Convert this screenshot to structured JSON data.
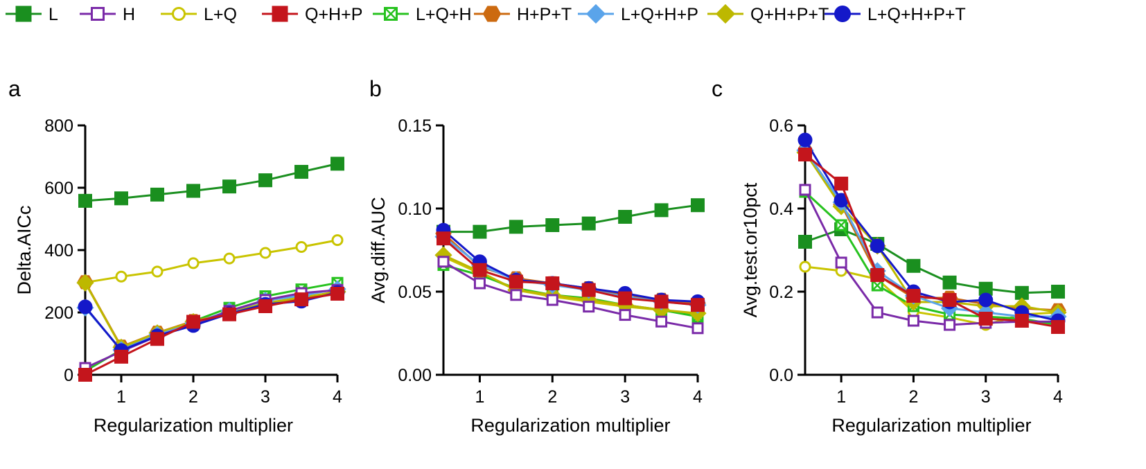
{
  "legend": {
    "entries": [
      {
        "key": "L",
        "label": "L",
        "color": "#1a8f1f",
        "marker": "square-filled"
      },
      {
        "key": "H",
        "label": "H",
        "color": "#7a2aa8",
        "marker": "square-open"
      },
      {
        "key": "LQ",
        "label": "L+Q",
        "color": "#c9c400",
        "marker": "circle-open"
      },
      {
        "key": "QHP",
        "label": "Q+H+P",
        "color": "#c4151c",
        "marker": "square-filled"
      },
      {
        "key": "LQH",
        "label": "L+Q+H",
        "color": "#27c21f",
        "marker": "square-x"
      },
      {
        "key": "HPT",
        "label": "H+P+T",
        "color": "#cc6a10",
        "marker": "hexagon-filled"
      },
      {
        "key": "LQHP",
        "label": "L+Q+H+P",
        "color": "#5aa4ea",
        "marker": "diamond-filled"
      },
      {
        "key": "QHPT",
        "label": "Q+H+P+T",
        "color": "#bdb800",
        "marker": "diamond-filled"
      },
      {
        "key": "LQHPT",
        "label": "L+Q+H+P+T",
        "color": "#1418c9",
        "marker": "circle-filled"
      }
    ]
  },
  "chart_data": [
    {
      "panel": "a",
      "type": "line",
      "title": "",
      "xlabel": "Regularization multiplier",
      "ylabel": "Delta.AICc",
      "xlim": [
        0.5,
        4
      ],
      "ylim": [
        0,
        800
      ],
      "xticks": [
        1,
        2,
        3,
        4
      ],
      "xtick_labels": [
        "1",
        "2",
        "3",
        "4"
      ],
      "yticks": [
        0,
        200,
        400,
        600,
        800
      ],
      "ytick_labels": [
        "0",
        "200",
        "400",
        "600",
        "800"
      ],
      "x": [
        0.5,
        1,
        1.5,
        2,
        2.5,
        3,
        3.5,
        4
      ],
      "series": [
        {
          "name": "L",
          "values": [
            558,
            566,
            578,
            590,
            604,
            624,
            651,
            677
          ]
        },
        {
          "name": "H",
          "values": [
            22,
            75,
            124,
            162,
            205,
            240,
            262,
            272
          ]
        },
        {
          "name": "L+Q",
          "values": [
            296,
            315,
            331,
            358,
            373,
            391,
            410,
            432
          ]
        },
        {
          "name": "L+Q+H",
          "values": [
            12,
            80,
            130,
            172,
            215,
            252,
            274,
            295
          ]
        },
        {
          "name": "H+P+T",
          "values": [
            297,
            90,
            135,
            172,
            198,
            228,
            245,
            268
          ]
        },
        {
          "name": "L+Q+H+P",
          "values": [
            215,
            80,
            128,
            165,
            205,
            238,
            254,
            275
          ]
        },
        {
          "name": "Q+H+P+T",
          "values": [
            295,
            88,
            134,
            170,
            200,
            230,
            248,
            266
          ]
        },
        {
          "name": "L+Q+H+P+T",
          "values": [
            218,
            78,
            125,
            158,
            196,
            226,
            236,
            264
          ]
        },
        {
          "name": "Q+H+P",
          "values": [
            0,
            58,
            115,
            170,
            194,
            220,
            242,
            260
          ]
        }
      ]
    },
    {
      "panel": "b",
      "type": "line",
      "title": "",
      "xlabel": "Regularization multiplier",
      "ylabel": "Avg.diff.AUC",
      "xlim": [
        0.5,
        4
      ],
      "ylim": [
        0,
        0.15
      ],
      "xticks": [
        1,
        2,
        3,
        4
      ],
      "xtick_labels": [
        "1",
        "2",
        "3",
        "4"
      ],
      "yticks": [
        0,
        0.05,
        0.1,
        0.15
      ],
      "ytick_labels": [
        "0.00",
        "0.05",
        "0.10",
        "0.15"
      ],
      "x": [
        0.5,
        1,
        1.5,
        2,
        2.5,
        3,
        3.5,
        4
      ],
      "series": [
        {
          "name": "L",
          "values": [
            0.086,
            0.086,
            0.089,
            0.09,
            0.091,
            0.095,
            0.099,
            0.102
          ]
        },
        {
          "name": "H",
          "values": [
            0.068,
            0.055,
            0.048,
            0.045,
            0.041,
            0.036,
            0.032,
            0.028
          ]
        },
        {
          "name": "L+Q",
          "values": [
            0.071,
            0.061,
            0.051,
            0.047,
            0.044,
            0.041,
            0.039,
            0.036
          ]
        },
        {
          "name": "L+Q+H",
          "values": [
            0.066,
            0.06,
            0.052,
            0.048,
            0.046,
            0.042,
            0.039,
            0.035
          ]
        },
        {
          "name": "H+P+T",
          "values": [
            0.085,
            0.065,
            0.058,
            0.055,
            0.052,
            0.048,
            0.045,
            0.043
          ]
        },
        {
          "name": "L+Q+H+P",
          "values": [
            0.083,
            0.066,
            0.057,
            0.054,
            0.051,
            0.047,
            0.044,
            0.042
          ]
        },
        {
          "name": "Q+H+P+T",
          "values": [
            0.072,
            0.062,
            0.051,
            0.048,
            0.045,
            0.042,
            0.039,
            0.037
          ]
        },
        {
          "name": "L+Q+H+P+T",
          "values": [
            0.087,
            0.068,
            0.057,
            0.055,
            0.052,
            0.049,
            0.045,
            0.044
          ]
        },
        {
          "name": "Q+H+P",
          "values": [
            0.082,
            0.063,
            0.056,
            0.055,
            0.051,
            0.046,
            0.044,
            0.042
          ]
        }
      ]
    },
    {
      "panel": "c",
      "type": "line",
      "title": "",
      "xlabel": "Regularization multiplier",
      "ylabel": "Avg.test.or10pct",
      "xlim": [
        0.5,
        4
      ],
      "ylim": [
        0,
        0.6
      ],
      "xticks": [
        1,
        2,
        3,
        4
      ],
      "xtick_labels": [
        "1",
        "2",
        "3",
        "4"
      ],
      "yticks": [
        0,
        0.2,
        0.4,
        0.6
      ],
      "ytick_labels": [
        "0.0",
        "0.2",
        "0.4",
        "0.6"
      ],
      "x": [
        0.5,
        1,
        1.5,
        2,
        2.5,
        3,
        3.5,
        4
      ],
      "series": [
        {
          "name": "L",
          "values": [
            0.32,
            0.35,
            0.315,
            0.262,
            0.222,
            0.207,
            0.197,
            0.2
          ]
        },
        {
          "name": "H",
          "values": [
            0.445,
            0.27,
            0.15,
            0.13,
            0.12,
            0.125,
            0.128,
            0.128
          ]
        },
        {
          "name": "L+Q",
          "values": [
            0.26,
            0.25,
            0.23,
            0.152,
            0.138,
            0.12,
            0.145,
            0.15
          ]
        },
        {
          "name": "L+Q+H",
          "values": [
            0.44,
            0.36,
            0.215,
            0.165,
            0.145,
            0.14,
            0.135,
            0.12
          ]
        },
        {
          "name": "H+P+T",
          "values": [
            0.54,
            0.41,
            0.24,
            0.185,
            0.185,
            0.17,
            0.16,
            0.155
          ]
        },
        {
          "name": "L+Q+H+P",
          "values": [
            0.54,
            0.415,
            0.25,
            0.19,
            0.16,
            0.15,
            0.14,
            0.14
          ]
        },
        {
          "name": "Q+H+P+T",
          "values": [
            0.535,
            0.405,
            0.31,
            0.175,
            0.175,
            0.165,
            0.165,
            0.15
          ]
        },
        {
          "name": "L+Q+H+P+T",
          "values": [
            0.565,
            0.42,
            0.31,
            0.2,
            0.175,
            0.18,
            0.15,
            0.13
          ]
        },
        {
          "name": "Q+H+P",
          "values": [
            0.53,
            0.46,
            0.24,
            0.19,
            0.18,
            0.135,
            0.13,
            0.115
          ]
        }
      ]
    }
  ]
}
